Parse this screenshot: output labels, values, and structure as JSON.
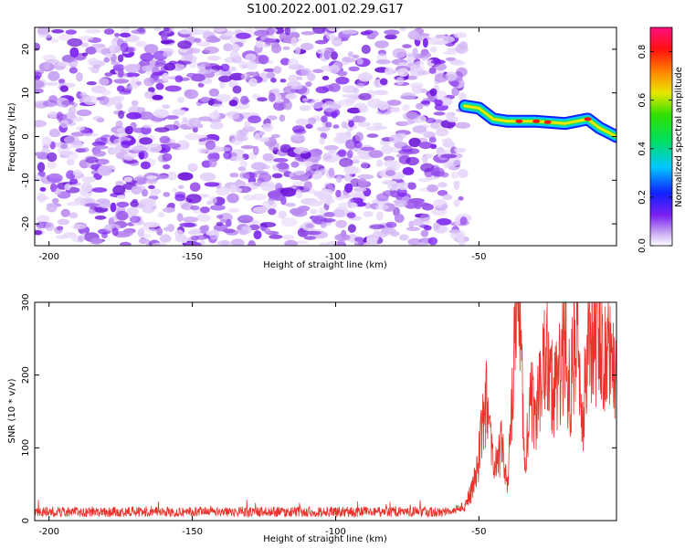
{
  "title": "S100.2022.001.02.29.G17",
  "chart_data": [
    {
      "type": "heatmap",
      "xlabel": "Height of straight line (km)",
      "ylabel": "Frequency (Hz)",
      "xlim": [
        -205,
        -2
      ],
      "ylim": [
        -25,
        25
      ],
      "x_ticks": [
        "-200",
        "-150",
        "-100",
        "-50"
      ],
      "y_ticks": [
        "20",
        "10",
        "0",
        "-10",
        "-20"
      ],
      "noise_region_x": [
        -205,
        -55
      ],
      "signal_trace": [
        {
          "x": -55,
          "y": 7
        },
        {
          "x": -50,
          "y": 6.5
        },
        {
          "x": -45,
          "y": 4
        },
        {
          "x": -40,
          "y": 3.5
        },
        {
          "x": -30,
          "y": 3.5
        },
        {
          "x": -20,
          "y": 3
        },
        {
          "x": -12,
          "y": 4
        },
        {
          "x": -8,
          "y": 2
        },
        {
          "x": -2,
          "y": 0
        }
      ],
      "colorbar": {
        "label": "Normalized spectral amplitude",
        "ticks": [
          "0.0",
          "0.2",
          "0.4",
          "0.6",
          "0.8"
        ],
        "range": [
          0,
          0.9
        ]
      }
    },
    {
      "type": "line",
      "xlabel": "Height of straight line (km)",
      "ylabel": "SNR (10 * v/v)",
      "xlim": [
        -205,
        -2
      ],
      "ylim": [
        0,
        300
      ],
      "x_ticks": [
        "-200",
        "-150",
        "-100",
        "-50"
      ],
      "y_ticks": [
        "0",
        "100",
        "200",
        "300"
      ],
      "series": [
        {
          "color": "#e8342c",
          "baseline": 12,
          "x": [
            -205,
            -60,
            -55,
            -52,
            -50,
            -48,
            -45,
            -42,
            -40,
            -38,
            -36,
            -34,
            -32,
            -30,
            -28,
            -26,
            -24,
            -22,
            -20,
            -18,
            -16,
            -14,
            -12,
            -10,
            -8,
            -6,
            -4,
            -2
          ],
          "y": [
            12,
            12,
            20,
            45,
            90,
            175,
            80,
            100,
            50,
            220,
            300,
            60,
            180,
            150,
            190,
            240,
            160,
            200,
            250,
            170,
            290,
            120,
            285,
            230,
            270,
            220,
            230,
            220
          ]
        }
      ]
    }
  ]
}
